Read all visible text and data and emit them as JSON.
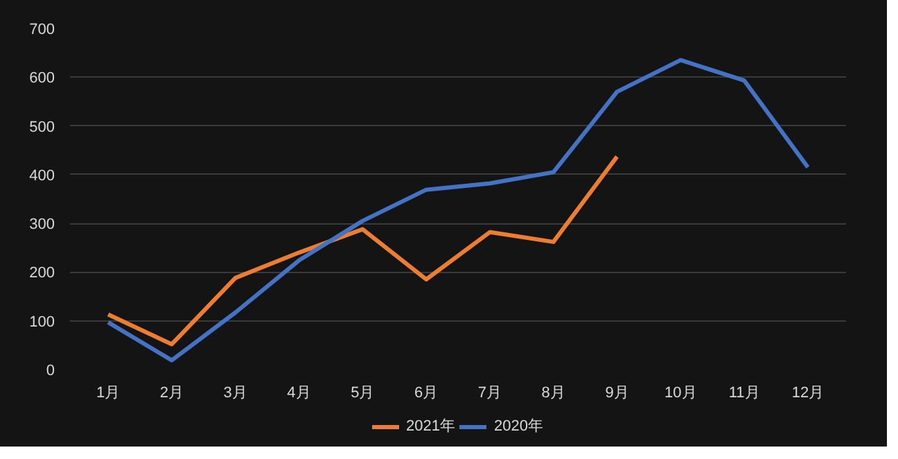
{
  "chart_data": {
    "type": "line",
    "categories": [
      "1月",
      "2月",
      "3月",
      "4月",
      "5月",
      "6月",
      "7月",
      "8月",
      "9月",
      "10月",
      "11月",
      "12月"
    ],
    "series": [
      {
        "name": "2021年",
        "color": "#ed7d31",
        "values": [
          113,
          52,
          188,
          240,
          288,
          185,
          282,
          262,
          437,
          null,
          null,
          null
        ]
      },
      {
        "name": "2020年",
        "color": "#4472c4",
        "values": [
          97,
          19,
          117,
          224,
          305,
          369,
          382,
          405,
          570,
          635,
          593,
          415
        ]
      }
    ],
    "ylim": [
      0,
      700
    ],
    "yticks": [
      0,
      100,
      200,
      300,
      400,
      500,
      600,
      700
    ],
    "grid": "y",
    "legend": "bottom",
    "marker": "none",
    "line_style": "solid"
  }
}
